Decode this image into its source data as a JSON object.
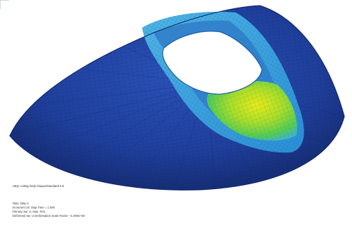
{
  "viewport": {
    "caption": "ABQ: cutting body    Abaqus/Standard 6.8",
    "status_lines": [
      "Step: Step-1",
      "Increment    10: Step Time =    1.000",
      "Primary Var: S, Max. Prin.",
      "Deformed Var: U    Deformation Scale Factor: +1.000e+00"
    ]
  },
  "colors": {
    "background": "#ffffff",
    "mesh_base": "#1f3f9c",
    "mesh_dark": "#172f78",
    "wall": "#2a8fd6",
    "wall_light": "#4fb6e6",
    "hotspot_yellow": "#d8e61c",
    "hotspot_green": "#6fd24a",
    "hole": "#ffffff"
  },
  "icons": [
    "viewport-corner-icon"
  ]
}
